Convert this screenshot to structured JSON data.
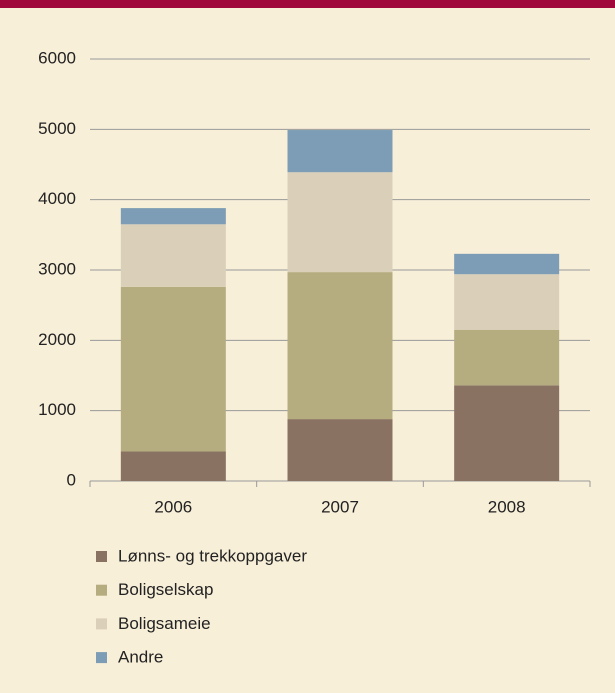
{
  "chart_data": {
    "type": "stacked_bar",
    "categories": [
      "2006",
      "2007",
      "2008"
    ],
    "series": [
      {
        "name": "Lønns- og trekkoppgaver",
        "color": "#8a7262",
        "values": [
          420,
          880,
          1360
        ]
      },
      {
        "name": "Boligselskap",
        "color": "#b5ad80",
        "values": [
          2340,
          2090,
          790
        ]
      },
      {
        "name": "Boligsameie",
        "color": "#dad0b9",
        "values": [
          890,
          1420,
          790
        ]
      },
      {
        "name": "Andre",
        "color": "#7c9db5",
        "values": [
          230,
          600,
          290
        ]
      }
    ],
    "ylim": [
      0,
      6000
    ],
    "yticks": [
      0,
      1000,
      2000,
      3000,
      4000,
      5000,
      6000
    ],
    "grid": true
  }
}
